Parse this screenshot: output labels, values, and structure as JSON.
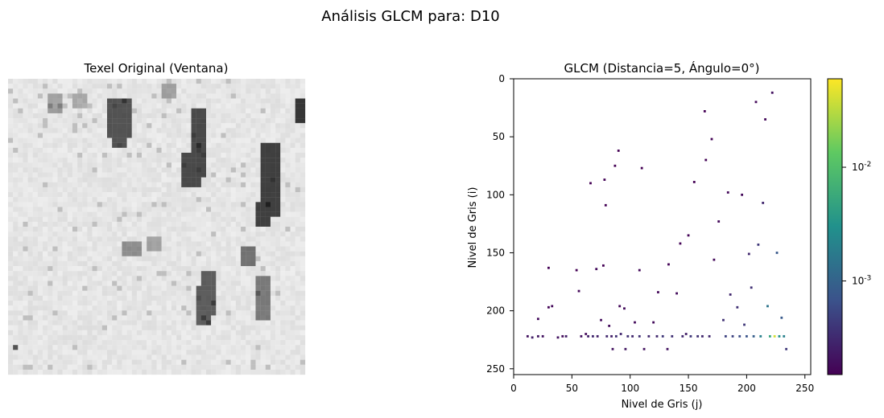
{
  "figure": {
    "suptitle": "Análisis GLCM para: D10"
  },
  "chart_data": [
    {
      "type": "heatmap",
      "title": "Texel Original (Ventana)",
      "colormap": "grayscale",
      "axes_visible": false,
      "description_visible_features": [
        "light gray mottled texture",
        "dark vertical cracks / streaks"
      ]
    },
    {
      "type": "scatter",
      "title": "GLCM (Distancia=5, Ángulo=0°)",
      "xlabel": "Nivel de Gris (j)",
      "ylabel": "Nivel de Gris (i)",
      "xlim": [
        0,
        255
      ],
      "ylim": [
        255,
        0
      ],
      "xticks": [
        0,
        50,
        100,
        150,
        200,
        250
      ],
      "yticks": [
        0,
        50,
        100,
        150,
        200,
        250
      ],
      "colormap": "viridis",
      "colorbar": {
        "scale": "log",
        "range": [
          0.00015,
          0.06
        ],
        "tick_labels": [
          "10^-2",
          "10^-3"
        ],
        "tick_values": [
          0.01,
          0.001
        ]
      },
      "series": [
        {
          "points": [
            [
              12,
              222,
              0.0002
            ],
            [
              16,
              223,
              0.00025
            ],
            [
              21,
              207,
              0.00018
            ],
            [
              21,
              222,
              0.00022
            ],
            [
              25,
              222,
              0.0002
            ],
            [
              30,
              163,
              0.00015
            ],
            [
              30,
              197,
              0.00016
            ],
            [
              33,
              196,
              0.00017
            ],
            [
              38,
              223,
              0.0002
            ],
            [
              42,
              222,
              0.00018
            ],
            [
              45,
              222,
              0.00025
            ],
            [
              54,
              165,
              0.00015
            ],
            [
              56,
              183,
              0.00017
            ],
            [
              58,
              222,
              0.0002
            ],
            [
              62,
              220,
              0.00017
            ],
            [
              64,
              222,
              0.00025
            ],
            [
              66,
              90,
              0.00015
            ],
            [
              68,
              222,
              0.0003
            ],
            [
              71,
              164,
              0.00018
            ],
            [
              72,
              222,
              0.00025
            ],
            [
              75,
              208,
              0.00018
            ],
            [
              77,
              161,
              0.00015
            ],
            [
              78,
              87,
              0.00016
            ],
            [
              79,
              109,
              0.00015
            ],
            [
              80,
              222,
              0.0003
            ],
            [
              82,
              213,
              0.00018
            ],
            [
              84,
              222,
              0.00025
            ],
            [
              85,
              233,
              0.0002
            ],
            [
              87,
              75,
              0.00015
            ],
            [
              88,
              222,
              0.00035
            ],
            [
              90,
              62,
              0.00015
            ],
            [
              91,
              196,
              0.00017
            ],
            [
              92,
              220,
              0.0003
            ],
            [
              95,
              198,
              0.00018
            ],
            [
              96,
              233,
              0.00022
            ],
            [
              98,
              222,
              0.00035
            ],
            [
              102,
              222,
              0.0003
            ],
            [
              104,
              210,
              0.00018
            ],
            [
              108,
              165,
              0.00017
            ],
            [
              108,
              222,
              0.00035
            ],
            [
              110,
              77,
              0.00015
            ],
            [
              112,
              233,
              0.0002
            ],
            [
              116,
              222,
              0.0003
            ],
            [
              120,
              210,
              0.00018
            ],
            [
              123,
              222,
              0.0003
            ],
            [
              124,
              184,
              0.00017
            ],
            [
              128,
              222,
              0.0004
            ],
            [
              132,
              233,
              0.0002
            ],
            [
              133,
              160,
              0.00016
            ],
            [
              136,
              222,
              0.00035
            ],
            [
              140,
              185,
              0.00018
            ],
            [
              143,
              142,
              0.00016
            ],
            [
              145,
              222,
              0.0003
            ],
            [
              148,
              220,
              0.00025
            ],
            [
              150,
              135,
              0.00016
            ],
            [
              152,
              222,
              0.0004
            ],
            [
              155,
              89,
              0.00015
            ],
            [
              158,
              222,
              0.00035
            ],
            [
              162,
              222,
              0.0003
            ],
            [
              164,
              28,
              0.00015
            ],
            [
              165,
              70,
              0.00016
            ],
            [
              168,
              222,
              0.0003
            ],
            [
              170,
              52,
              0.00016
            ],
            [
              172,
              156,
              0.00017
            ],
            [
              176,
              123,
              0.00017
            ],
            [
              180,
              208,
              0.00035
            ],
            [
              182,
              222,
              0.0005
            ],
            [
              184,
              98,
              0.00017
            ],
            [
              186,
              186,
              0.0003
            ],
            [
              188,
              222,
              0.0005
            ],
            [
              192,
              197,
              0.00035
            ],
            [
              194,
              222,
              0.0006
            ],
            [
              196,
              100,
              0.00017
            ],
            [
              198,
              212,
              0.0004
            ],
            [
              200,
              222,
              0.0007
            ],
            [
              202,
              151,
              0.0003
            ],
            [
              204,
              180,
              0.00035
            ],
            [
              206,
              222,
              0.0009
            ],
            [
              208,
              20,
              0.00017
            ],
            [
              210,
              143,
              0.0004
            ],
            [
              212,
              222,
              0.002
            ],
            [
              214,
              107,
              0.0003
            ],
            [
              216,
              35,
              0.00017
            ],
            [
              218,
              196,
              0.0015
            ],
            [
              220,
              222,
              0.005
            ],
            [
              222,
              12,
              0.0002
            ],
            [
              224,
              222,
              0.04
            ],
            [
              226,
              150,
              0.0008
            ],
            [
              228,
              222,
              0.003
            ],
            [
              230,
              206,
              0.0008
            ],
            [
              232,
              222,
              0.002
            ],
            [
              234,
              233,
              0.0004
            ]
          ]
        }
      ]
    }
  ]
}
